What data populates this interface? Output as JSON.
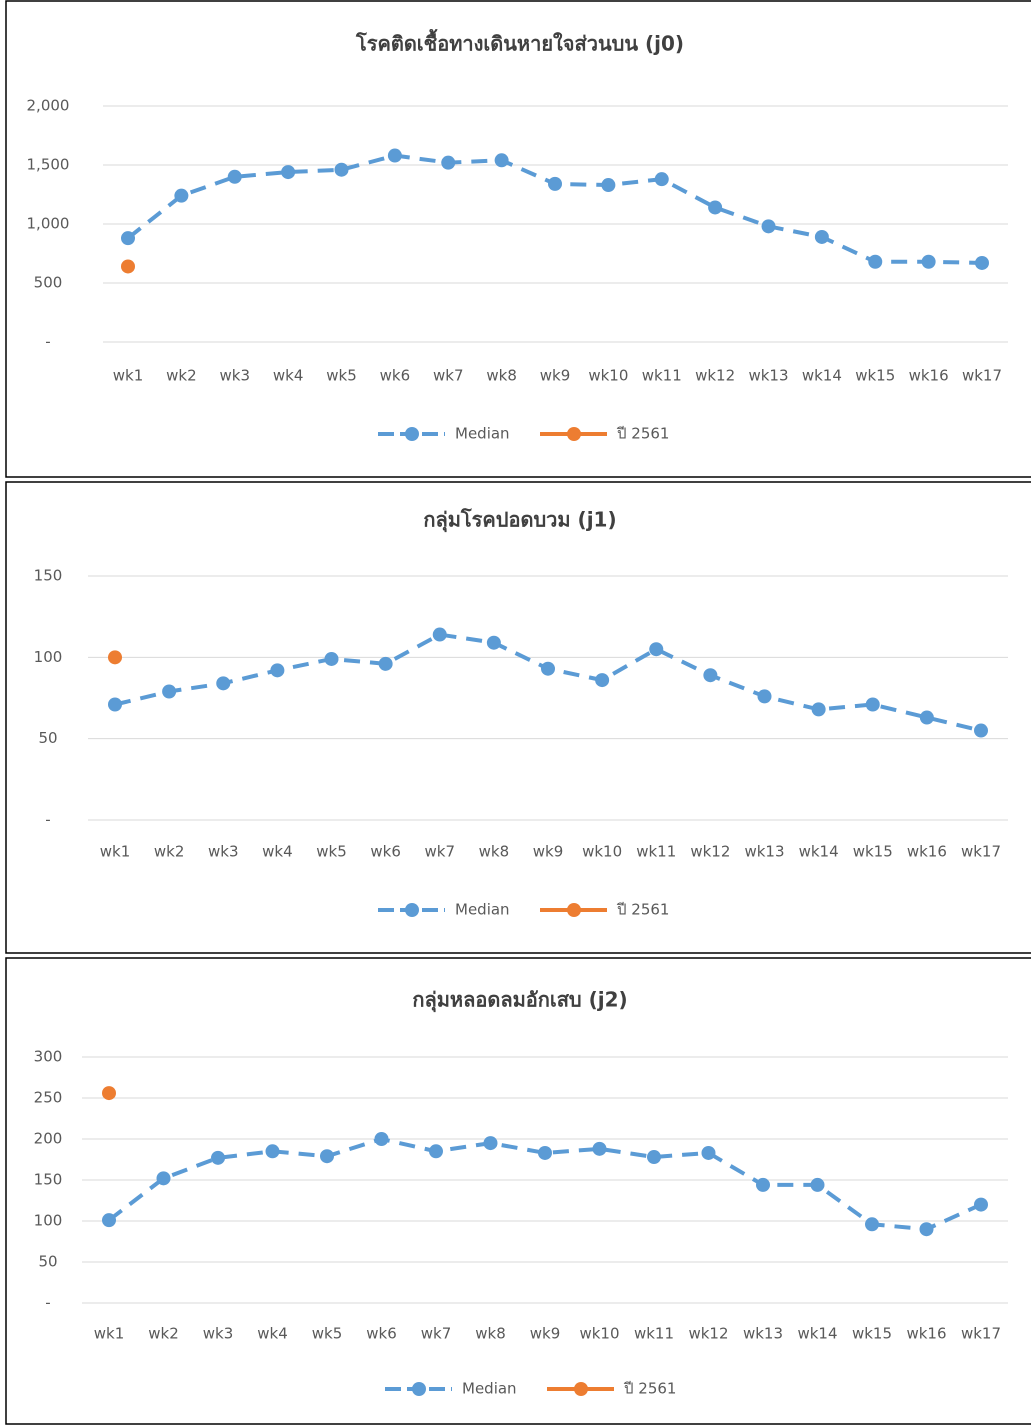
{
  "chart_data": [
    {
      "type": "line",
      "title": "โรคติดเชื้อทางเดินหายใจส่วนบน (j0)",
      "categories": [
        "wk1",
        "wk2",
        "wk3",
        "wk4",
        "wk5",
        "wk6",
        "wk7",
        "wk8",
        "wk9",
        "wk10",
        "wk11",
        "wk12",
        "wk13",
        "wk14",
        "wk15",
        "wk16",
        "wk17"
      ],
      "series": [
        {
          "name": "Median",
          "color": "#5b9bd5",
          "line_style": "dashed",
          "values": [
            880,
            1240,
            1400,
            1440,
            1460,
            1580,
            1520,
            1540,
            1340,
            1330,
            1380,
            1140,
            980,
            890,
            680,
            680,
            670
          ]
        },
        {
          "name": "ปี 2561",
          "color": "#ed7d31",
          "line_style": "solid",
          "values": [
            640,
            null,
            null,
            null,
            null,
            null,
            null,
            null,
            null,
            null,
            null,
            null,
            null,
            null,
            null,
            null,
            null
          ]
        }
      ],
      "ylim": [
        0,
        2000
      ],
      "yticks": [
        {
          "value": 0,
          "label": "-"
        },
        500,
        {
          "value": 1000,
          "label": "1,000"
        },
        {
          "value": 1500,
          "label": "1,500"
        },
        {
          "value": 2000,
          "label": "2,000"
        }
      ],
      "grid": true,
      "legend": "bottom"
    },
    {
      "type": "line",
      "title": "กลุ่มโรคปอดบวม (j1)",
      "categories": [
        "wk1",
        "wk2",
        "wk3",
        "wk4",
        "wk5",
        "wk6",
        "wk7",
        "wk8",
        "wk9",
        "wk10",
        "wk11",
        "wk12",
        "wk13",
        "wk14",
        "wk15",
        "wk16",
        "wk17"
      ],
      "series": [
        {
          "name": "Median",
          "color": "#5b9bd5",
          "line_style": "dashed",
          "values": [
            71,
            79,
            84,
            92,
            99,
            96,
            114,
            109,
            93,
            86,
            105,
            89,
            76,
            68,
            71,
            63,
            55
          ]
        },
        {
          "name": "ปี 2561",
          "color": "#ed7d31",
          "line_style": "solid",
          "values": [
            100,
            null,
            null,
            null,
            null,
            null,
            null,
            null,
            null,
            null,
            null,
            null,
            null,
            null,
            null,
            null,
            null
          ]
        }
      ],
      "ylim": [
        0,
        150
      ],
      "yticks": [
        {
          "value": 0,
          "label": "-"
        },
        50,
        100,
        150
      ],
      "grid": true,
      "legend": "bottom"
    },
    {
      "type": "line",
      "title": "กลุ่มหลอดลมอักเสบ (j2)",
      "categories": [
        "wk1",
        "wk2",
        "wk3",
        "wk4",
        "wk5",
        "wk6",
        "wk7",
        "wk8",
        "wk9",
        "wk10",
        "wk11",
        "wk12",
        "wk13",
        "wk14",
        "wk15",
        "wk16",
        "wk17"
      ],
      "series": [
        {
          "name": "Median",
          "color": "#5b9bd5",
          "line_style": "dashed",
          "values": [
            101,
            152,
            177,
            185,
            179,
            200,
            185,
            195,
            183,
            188,
            178,
            183,
            144,
            144,
            96,
            90,
            120
          ]
        },
        {
          "name": "ปี 2561",
          "color": "#ed7d31",
          "line_style": "solid",
          "values": [
            256,
            null,
            null,
            null,
            null,
            null,
            null,
            null,
            null,
            null,
            null,
            null,
            null,
            null,
            null,
            null,
            null
          ]
        }
      ],
      "ylim": [
        0,
        300
      ],
      "yticks": [
        {
          "value": 0,
          "label": "-"
        },
        50,
        100,
        150,
        200,
        250,
        300
      ],
      "grid": true,
      "legend": "bottom"
    }
  ]
}
